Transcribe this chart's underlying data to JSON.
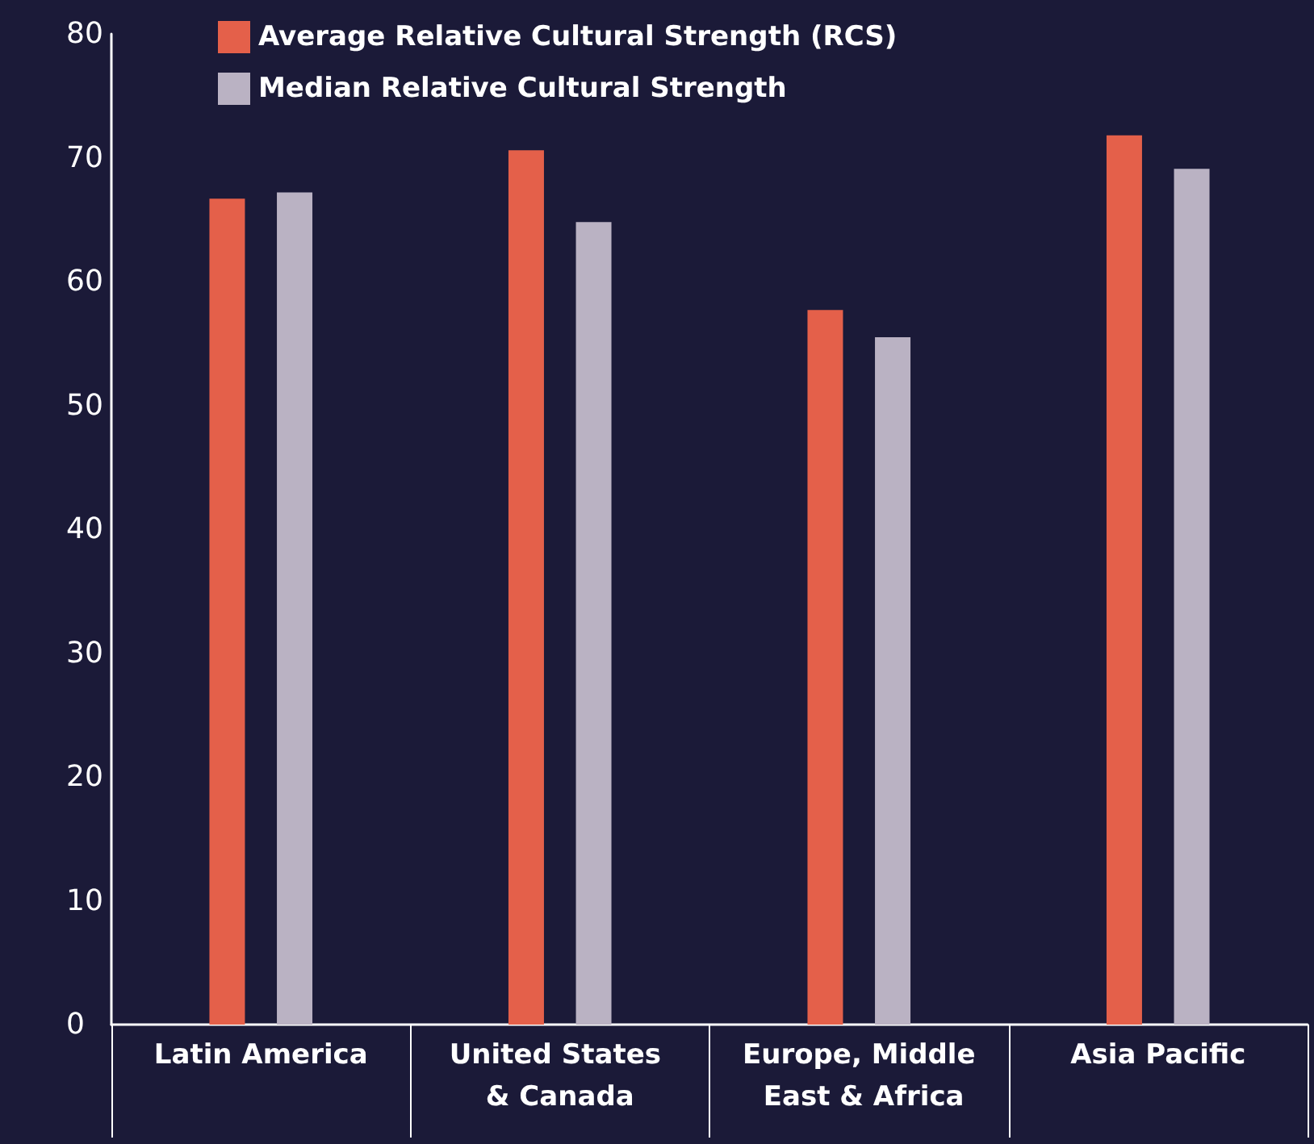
{
  "chart_data": {
    "type": "bar",
    "categories": [
      "Latin America",
      "United States & Canada",
      "Europe, Middle East & Africa",
      "Asia Pacific"
    ],
    "series": [
      {
        "name": "Average Relative Cultural Strength (RCS)",
        "color": "#e4604a",
        "values": [
          66.7,
          70.6,
          57.7,
          71.8
        ]
      },
      {
        "name": "Median Relative Cultural Strength",
        "color": "#bab2c3",
        "values": [
          67.2,
          64.8,
          55.5,
          69.1
        ]
      }
    ],
    "ylim": [
      0,
      80
    ],
    "yticks": [
      0,
      10,
      20,
      30,
      40,
      50,
      60,
      70,
      80
    ],
    "grid": false,
    "legend": "top"
  }
}
